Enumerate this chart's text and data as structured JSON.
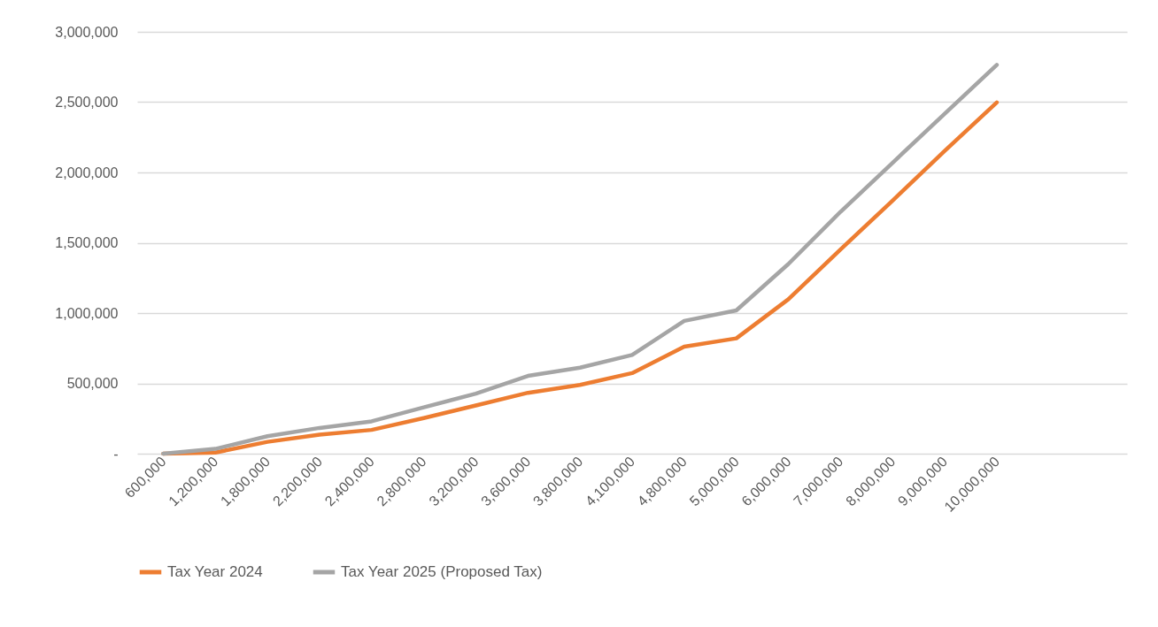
{
  "chart_data": {
    "type": "line",
    "categories": [
      "600,000",
      "1,200,000",
      "1,800,000",
      "2,200,000",
      "2,400,000",
      "2,800,000",
      "3,200,000",
      "3,600,000",
      "3,800,000",
      "4,100,000",
      "4,800,000",
      "5,000,000",
      "6,000,000",
      "7,000,000",
      "8,000,000",
      "9,000,000",
      "10,000,000",
      null,
      null
    ],
    "series": [
      {
        "name": "Tax Year 2024",
        "color": "#ed7d31",
        "values": [
          0,
          8000,
          84000,
          135000,
          169000,
          253000,
          343000,
          433000,
          489000,
          573000,
          761000,
          820000,
          1098000,
          1452000,
          1800000,
          2153000,
          2498000,
          null,
          null
        ]
      },
      {
        "name": "Tax Year 2025 (Proposed Tax)",
        "color": "#a5a5a5",
        "values": [
          0,
          34000,
          124000,
          183000,
          230000,
          329000,
          427000,
          553000,
          612000,
          702000,
          944000,
          1019000,
          1349000,
          1720000,
          2069000,
          2418000,
          2765000,
          null,
          null
        ]
      }
    ],
    "ylim": [
      0,
      3000000
    ],
    "yticks": [
      {
        "value": 0,
        "label": "-"
      },
      {
        "value": 500000,
        "label": "500,000"
      },
      {
        "value": 1000000,
        "label": "1,000,000"
      },
      {
        "value": 1500000,
        "label": "1,500,000"
      },
      {
        "value": 2000000,
        "label": "2,000,000"
      },
      {
        "value": 2500000,
        "label": "2,500,000"
      },
      {
        "value": 3000000,
        "label": "3,000,000"
      }
    ],
    "grid": "y",
    "legend": "bottom",
    "line_style": "solid"
  }
}
